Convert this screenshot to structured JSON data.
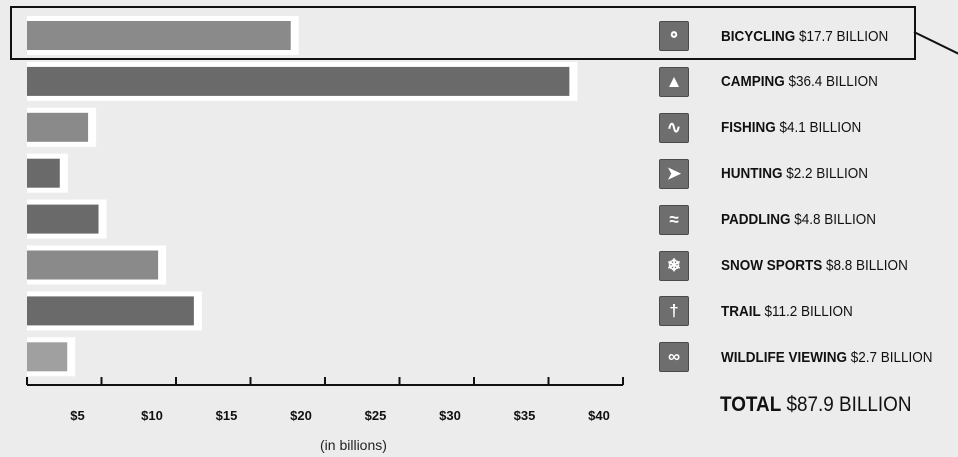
{
  "chart_data": {
    "type": "bar",
    "orientation": "horizontal",
    "categories": [
      "BICYCLING",
      "CAMPING",
      "FISHING",
      "HUNTING",
      "PADDLING",
      "SNOW SPORTS",
      "TRAIL",
      "WILDLIFE VIEWING"
    ],
    "values": [
      17.7,
      36.4,
      4.1,
      2.2,
      4.8,
      8.8,
      11.2,
      2.7
    ],
    "value_labels": [
      "$17.7 BILLION",
      "$36.4 BILLION",
      "$4.1 BILLION",
      "$2.2 BILLION",
      "$4.8 BILLION",
      "$8.8 BILLION",
      "$11.2 BILLION",
      "$2.7 BILLION"
    ],
    "icons": [
      "bicycle-icon",
      "tent-icon",
      "fishing-icon",
      "hunting-icon",
      "paddling-icon",
      "skiing-icon",
      "hiker-icon",
      "binoculars-icon"
    ],
    "icon_glyphs": [
      "⚬",
      "▲",
      "∿",
      "➤",
      "≈",
      "❄",
      "†",
      "∞"
    ],
    "bar_colors": [
      "#8a8a8a",
      "#6a6a6a",
      "#8a8a8a",
      "#6a6a6a",
      "#6a6a6a",
      "#8a8a8a",
      "#6a6a6a",
      "#a0a0a0"
    ],
    "xlim": [
      0,
      40
    ],
    "x_ticks": [
      5,
      10,
      15,
      20,
      25,
      30,
      35,
      40
    ],
    "x_tick_labels": [
      "$5",
      "$10",
      "$15",
      "$20",
      "$25",
      "$30",
      "$35",
      "$40"
    ],
    "xlabel": "(in billions)",
    "highlighted_category": "BICYCLING",
    "grid": false,
    "legend_position": "right"
  },
  "total": {
    "label": "TOTAL",
    "value": "$87.9 BILLION"
  },
  "colors": {
    "background": "#ececec",
    "icon_background": "#6e6e6e",
    "bar_halo": "#ffffff"
  }
}
